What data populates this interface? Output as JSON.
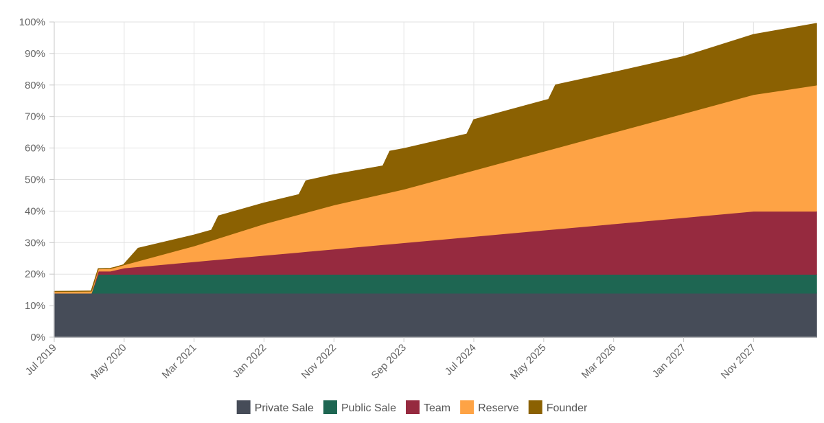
{
  "chart_data": {
    "type": "area",
    "stacked": true,
    "title": "",
    "xlabel": "",
    "ylabel": "",
    "ylim": [
      0,
      100
    ],
    "y_ticks": [
      "0%",
      "10%",
      "20%",
      "30%",
      "40%",
      "50%",
      "60%",
      "70%",
      "80%",
      "90%",
      "100%"
    ],
    "x_ticks": [
      "Jul 2019",
      "May 2020",
      "Mar 2021",
      "Jan 2022",
      "Nov 2022",
      "Sep 2023",
      "Jul 2024",
      "May 2025",
      "Mar 2026",
      "Jan 2027",
      "Nov 2027"
    ],
    "x_tick_months": [
      0,
      10,
      20,
      30,
      40,
      50,
      60,
      70,
      80,
      90,
      100
    ],
    "x_range_months": [
      0,
      109
    ],
    "x_unit": "months since Jul 2019",
    "grid": true,
    "legend_position": "bottom",
    "series": [
      {
        "name": "Private Sale",
        "color": "#464c58",
        "points": [
          [
            0,
            14
          ],
          [
            109,
            14
          ]
        ]
      },
      {
        "name": "Public Sale",
        "color": "#1e6652",
        "points": [
          [
            0,
            0
          ],
          [
            5,
            0
          ],
          [
            5.3,
            0
          ],
          [
            6.3,
            6
          ],
          [
            109,
            6
          ]
        ]
      },
      {
        "name": "Team",
        "color": "#962a3f",
        "points": [
          [
            0,
            0
          ],
          [
            5.3,
            0
          ],
          [
            6.3,
            1
          ],
          [
            8,
            1
          ],
          [
            10,
            2
          ],
          [
            20,
            4
          ],
          [
            30,
            6
          ],
          [
            40,
            8
          ],
          [
            50,
            10
          ],
          [
            60,
            12
          ],
          [
            70,
            14
          ],
          [
            80,
            16
          ],
          [
            90,
            18
          ],
          [
            100,
            20
          ],
          [
            109,
            20
          ]
        ]
      },
      {
        "name": "Reserve",
        "color": "#fea345",
        "points": [
          [
            0,
            0.5
          ],
          [
            5,
            0.6
          ],
          [
            6.3,
            0.7
          ],
          [
            8.5,
            0.8
          ],
          [
            10,
            1
          ],
          [
            20,
            5
          ],
          [
            30,
            10
          ],
          [
            40,
            14
          ],
          [
            50,
            17
          ],
          [
            60,
            21
          ],
          [
            70,
            25
          ],
          [
            80,
            29
          ],
          [
            90,
            33
          ],
          [
            100,
            37
          ],
          [
            109,
            40
          ]
        ]
      },
      {
        "name": "Founder",
        "color": "#8b6102",
        "points": [
          [
            0,
            0
          ],
          [
            9.9,
            0
          ],
          [
            12,
            4
          ],
          [
            22.5,
            3.2
          ],
          [
            23.5,
            7
          ],
          [
            35,
            6.2
          ],
          [
            36,
            10
          ],
          [
            47,
            8.8
          ],
          [
            48,
            13
          ],
          [
            59,
            12
          ],
          [
            60,
            16
          ],
          [
            70.7,
            16
          ],
          [
            71.7,
            20
          ],
          [
            80,
            19
          ],
          [
            90,
            18
          ],
          [
            100,
            19
          ],
          [
            109,
            19.5
          ]
        ]
      }
    ]
  }
}
